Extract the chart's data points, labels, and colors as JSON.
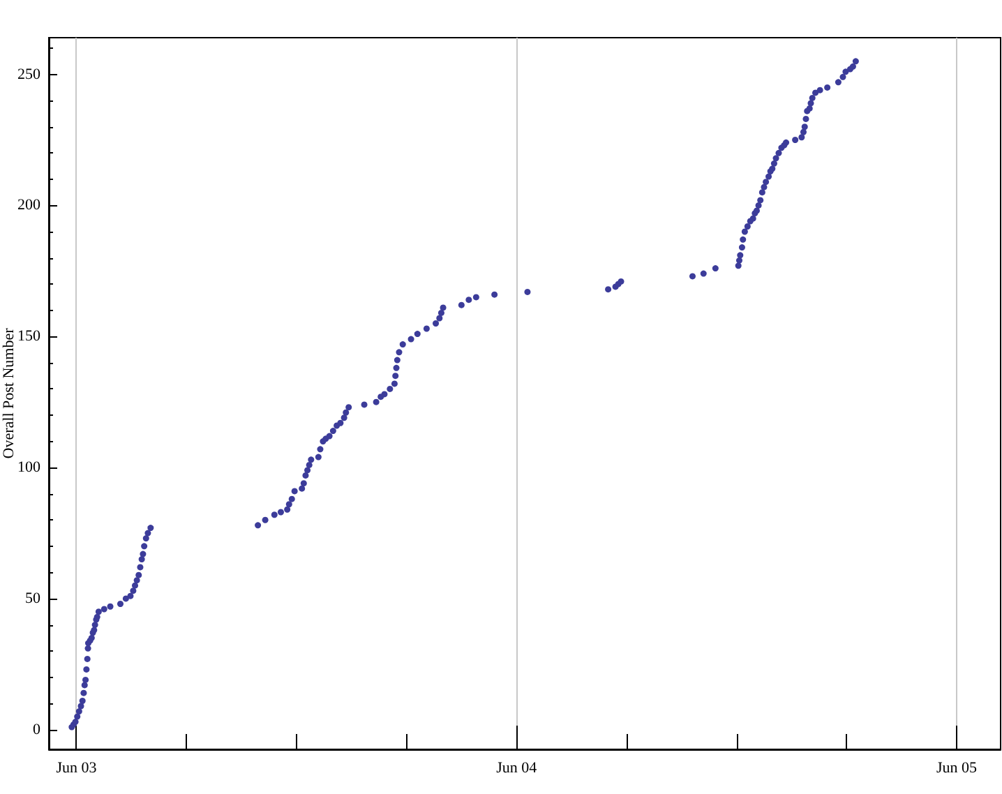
{
  "chart_data": {
    "type": "scatter",
    "ylabel": "Overall Post Number",
    "x": [
      "--06-02T23:45",
      "--06-02T23:51",
      "--06-02T23:57",
      "--06-03T00:03",
      "--06-03T00:09",
      "--06-03T00:15",
      "--06-03T00:20",
      "--06-03T00:24",
      "--06-03T00:27",
      "--06-03T00:30",
      "--06-03T00:33",
      "--06-03T00:36",
      "--06-03T00:38",
      "--06-03T00:39",
      "--06-03T00:45",
      "--06-03T00:50",
      "--06-03T00:54",
      "--06-03T00:58",
      "--06-03T01:01",
      "--06-03T01:05",
      "--06-03T01:08",
      "--06-03T01:13",
      "--06-03T01:31",
      "--06-03T01:51",
      "--06-03T02:24",
      "--06-03T02:42",
      "--06-03T02:57",
      "--06-03T03:06",
      "--06-03T03:12",
      "--06-03T03:18",
      "--06-03T03:24",
      "--06-03T03:29",
      "--06-03T03:34",
      "--06-03T03:38",
      "--06-03T03:42",
      "--06-03T03:48",
      "--06-03T03:54",
      "--06-03T04:03",
      "--06-03T09:54",
      "--06-03T10:18",
      "--06-03T10:48",
      "--06-03T11:09",
      "--06-03T11:30",
      "--06-03T11:36",
      "--06-03T11:45",
      "--06-03T11:54",
      "--06-03T12:18",
      "--06-03T12:24",
      "--06-03T12:30",
      "--06-03T12:36",
      "--06-03T12:42",
      "--06-03T12:48",
      "--06-03T13:12",
      "--06-03T13:18",
      "--06-03T13:27",
      "--06-03T13:36",
      "--06-03T13:48",
      "--06-03T14:00",
      "--06-03T14:12",
      "--06-03T14:24",
      "--06-03T14:36",
      "--06-03T14:42",
      "--06-03T14:51",
      "--06-03T15:42",
      "--06-03T16:21",
      "--06-03T16:36",
      "--06-03T16:48",
      "--06-03T17:06",
      "--06-03T17:21",
      "--06-03T17:24",
      "--06-03T17:27",
      "--06-03T17:30",
      "--06-03T17:36",
      "--06-03T17:48",
      "--06-03T18:15",
      "--06-03T18:36",
      "--06-03T19:06",
      "--06-03T19:36",
      "--06-03T19:48",
      "--06-03T19:54",
      "--06-03T20:00",
      "--06-03T21:00",
      "--06-03T21:24",
      "--06-03T21:48",
      "--06-03T22:48",
      "--06-04T00:36",
      "--06-04T05:00",
      "--06-04T05:24",
      "--06-04T05:33",
      "--06-04T05:42",
      "--06-04T09:36",
      "--06-04T10:12",
      "--06-04T10:51",
      "--06-04T12:06",
      "--06-04T12:09",
      "--06-04T12:12",
      "--06-04T12:18",
      "--06-04T12:21",
      "--06-04T12:27",
      "--06-04T12:36",
      "--06-04T12:45",
      "--06-04T12:54",
      "--06-04T13:00",
      "--06-04T13:06",
      "--06-04T13:12",
      "--06-04T13:18",
      "--06-04T13:24",
      "--06-04T13:30",
      "--06-04T13:36",
      "--06-04T13:45",
      "--06-04T13:51",
      "--06-04T13:57",
      "--06-04T14:03",
      "--06-04T14:09",
      "--06-04T14:18",
      "--06-04T14:27",
      "--06-04T14:36",
      "--06-04T14:42",
      "--06-04T15:12",
      "--06-04T15:33",
      "--06-04T15:39",
      "--06-04T15:43",
      "--06-04T15:47",
      "--06-04T15:51",
      "--06-04T15:59",
      "--06-04T16:03",
      "--06-04T16:08",
      "--06-04T16:18",
      "--06-04T16:33",
      "--06-04T16:57",
      "--06-04T17:33",
      "--06-04T17:48",
      "--06-04T17:57",
      "--06-04T18:12",
      "--06-04T18:21",
      "--06-04T18:30"
    ],
    "values": [
      1,
      2,
      3,
      5,
      7,
      9,
      11,
      14,
      17,
      19,
      23,
      27,
      31,
      33,
      34,
      35,
      37,
      38,
      40,
      42,
      43,
      45,
      46,
      47,
      48,
      50,
      51,
      53,
      55,
      57,
      59,
      62,
      65,
      67,
      70,
      73,
      75,
      77,
      78,
      80,
      82,
      83,
      84,
      86,
      88,
      91,
      92,
      94,
      97,
      99,
      101,
      103,
      104,
      107,
      110,
      111,
      112,
      114,
      116,
      117,
      119,
      121,
      123,
      124,
      125,
      127,
      128,
      130,
      132,
      135,
      138,
      141,
      144,
      147,
      149,
      151,
      153,
      155,
      157,
      159,
      161,
      162,
      164,
      165,
      166,
      167,
      168,
      169,
      170,
      171,
      173,
      174,
      176,
      177,
      179,
      181,
      184,
      187,
      190,
      192,
      194,
      195,
      197,
      198,
      200,
      202,
      205,
      207,
      209,
      211,
      213,
      214,
      216,
      218,
      220,
      222,
      223,
      224,
      225,
      226,
      228,
      230,
      233,
      236,
      237,
      239,
      241,
      243,
      244,
      245,
      247,
      249,
      251,
      252,
      253,
      255
    ],
    "color": "#3c3c9a",
    "marker": "circle",
    "xlim": [
      "--06-02T22:30",
      "--06-05T02:24"
    ],
    "xticks": [
      {
        "value": "--06-03",
        "label": "Jun 03"
      },
      {
        "value": "--06-03T06:00",
        "label": null
      },
      {
        "value": "--06-03T12:00",
        "label": null
      },
      {
        "value": "--06-03T18:00",
        "label": null
      },
      {
        "value": "--06-04",
        "label": "Jun 04"
      },
      {
        "value": "--06-04T06:00",
        "label": null
      },
      {
        "value": "--06-04T12:00",
        "label": null
      },
      {
        "value": "--06-04T18:00",
        "label": null
      },
      {
        "value": "--06-05",
        "label": "Jun 05"
      }
    ],
    "ylim": [
      -7.5,
      264
    ],
    "yticks": [
      0,
      {
        "value": 10,
        "label": null
      },
      {
        "value": 20,
        "label": null
      },
      {
        "value": 30,
        "label": null
      },
      {
        "value": 40,
        "label": null
      },
      50,
      {
        "value": 60,
        "label": null
      },
      {
        "value": 70,
        "label": null
      },
      {
        "value": 80,
        "label": null
      },
      {
        "value": 90,
        "label": null
      },
      100,
      {
        "value": 110,
        "label": null
      },
      {
        "value": 120,
        "label": null
      },
      {
        "value": 130,
        "label": null
      },
      {
        "value": 140,
        "label": null
      },
      150,
      {
        "value": 160,
        "label": null
      },
      {
        "value": 170,
        "label": null
      },
      {
        "value": 180,
        "label": null
      },
      {
        "value": 190,
        "label": null
      },
      200,
      {
        "value": 210,
        "label": null
      },
      {
        "value": 220,
        "label": null
      },
      {
        "value": 230,
        "label": null
      },
      {
        "value": 240,
        "label": null
      },
      250,
      {
        "value": 260,
        "label": null
      }
    ],
    "grid": "x"
  }
}
